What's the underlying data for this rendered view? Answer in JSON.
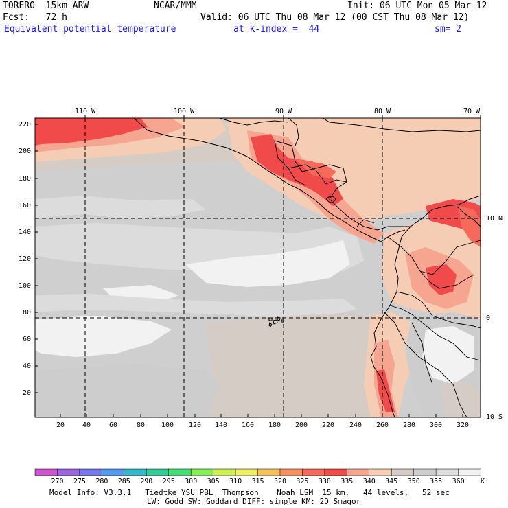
{
  "header": {
    "model": "TORERO  15km ARW",
    "org": "NCAR/MMM",
    "init": "Init: 06 UTC Mon 05 Mar 12",
    "fcst": "Fcst:   72 h",
    "valid": "Valid: 06 UTC Thu 08 Mar 12 (00 CST Thu 08 Mar 12)",
    "field": "Equivalent potential temperature",
    "level": "at k-index =  44",
    "smooth": "sm= 2"
  },
  "map": {
    "lon_labels": [
      "110 W",
      "100 W",
      "90 W",
      "80 W",
      "70 W"
    ],
    "lat_labels": [
      "10 N",
      "0",
      "10 S"
    ],
    "y_ticks": [
      "220",
      "200",
      "180",
      "160",
      "140",
      "120",
      "100",
      "80",
      "60",
      "40",
      "20"
    ],
    "x_ticks": [
      "20",
      "40",
      "60",
      "80",
      "100",
      "120",
      "140",
      "160",
      "180",
      "200",
      "220",
      "240",
      "260",
      "280",
      "300",
      "320"
    ]
  },
  "colorbar": {
    "levels": [
      "270",
      "275",
      "280",
      "285",
      "290",
      "295",
      "300",
      "305",
      "310",
      "315",
      "320",
      "325",
      "330",
      "335",
      "340",
      "345",
      "350",
      "355",
      "360"
    ],
    "unit": "K",
    "colors": [
      "#cc55cc",
      "#9a66dd",
      "#7777ee",
      "#5599ee",
      "#33bbcc",
      "#33cc99",
      "#44dd77",
      "#88ee55",
      "#ccee55",
      "#eeee66",
      "#f5c060",
      "#f59060",
      "#f56a5a",
      "#f04a4a",
      "#f5a590",
      "#f5cdb5",
      "#d5ccc5",
      "#cdcdcd",
      "#dcdcdc",
      "#f2f2f2"
    ]
  },
  "footer": {
    "line1": "Model Info: V3.3.1   Tiedtke YSU PBL  Thompson    Noah LSM  15 km,   44 levels,   52 sec",
    "line2": "LW: Godd SW: Goddard DIFF: simple KM: 2D Smagor"
  }
}
